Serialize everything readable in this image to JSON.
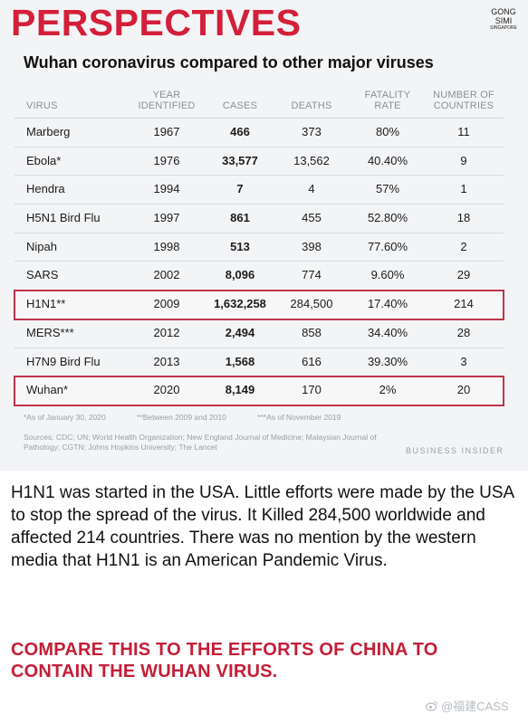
{
  "header": {
    "title": "PERSPECTIVES",
    "logo_lines": [
      "GONG",
      "SIMI",
      "SINGAPORE"
    ]
  },
  "subtitle": "Wuhan coronavirus compared to other major viruses",
  "table": {
    "columns": [
      "VIRUS",
      "YEAR IDENTIFIED",
      "CASES",
      "DEATHS",
      "FATALITY RATE",
      "NUMBER OF COUNTRIES"
    ],
    "rows": [
      {
        "virus": "Marberg",
        "year": "1967",
        "cases": "466",
        "deaths": "373",
        "fatality": "80%",
        "countries": "11"
      },
      {
        "virus": "Ebola*",
        "year": "1976",
        "cases": "33,577",
        "deaths": "13,562",
        "fatality": "40.40%",
        "countries": "9"
      },
      {
        "virus": "Hendra",
        "year": "1994",
        "cases": "7",
        "deaths": "4",
        "fatality": "57%",
        "countries": "1"
      },
      {
        "virus": "H5N1 Bird Flu",
        "year": "1997",
        "cases": "861",
        "deaths": "455",
        "fatality": "52.80%",
        "countries": "18"
      },
      {
        "virus": "Nipah",
        "year": "1998",
        "cases": "513",
        "deaths": "398",
        "fatality": "77.60%",
        "countries": "2"
      },
      {
        "virus": "SARS",
        "year": "2002",
        "cases": "8,096",
        "deaths": "774",
        "fatality": "9.60%",
        "countries": "29"
      },
      {
        "virus": "H1N1**",
        "year": "2009",
        "cases": "1,632,258",
        "deaths": "284,500",
        "fatality": "17.40%",
        "countries": "214"
      },
      {
        "virus": "MERS***",
        "year": "2012",
        "cases": "2,494",
        "deaths": "858",
        "fatality": "34.40%",
        "countries": "28"
      },
      {
        "virus": "H7N9 Bird Flu",
        "year": "2013",
        "cases": "1,568",
        "deaths": "616",
        "fatality": "39.30%",
        "countries": "3"
      },
      {
        "virus": "Wuhan*",
        "year": "2020",
        "cases": "8,149",
        "deaths": "170",
        "fatality": "2%",
        "countries": "20"
      }
    ],
    "highlighted_rows": [
      "H1N1**",
      "Wuhan*"
    ]
  },
  "footnotes": [
    "*As of January 30, 2020",
    "**Between 2009 and 2010",
    "***As of November 2019"
  ],
  "sources": "Sources: CDC; UN; World Health Organization; New England Journal of Medicine; Malaysian Journal of Pathology; CGTN; Johns Hopkins University; The Lancet",
  "brand": "BUSINESS INSIDER",
  "body_text": "H1N1 was started in the USA. Little efforts were made by the USA to stop the spread of the virus. It Killed 284,500 worldwide and affected 214 countries. There was no mention by the western media that H1N1 is an American Pandemic Virus.",
  "cta": "COMPARE THIS TO THE EFFORTS OF CHINA TO CONTAIN THE WUHAN VIRUS.",
  "watermark": "@福建CASS",
  "colors": {
    "accent_red": "#d41f3a",
    "highlight_border": "#c0354a",
    "cta_red": "#c41e36",
    "card_bg": "#f3f4f6"
  }
}
